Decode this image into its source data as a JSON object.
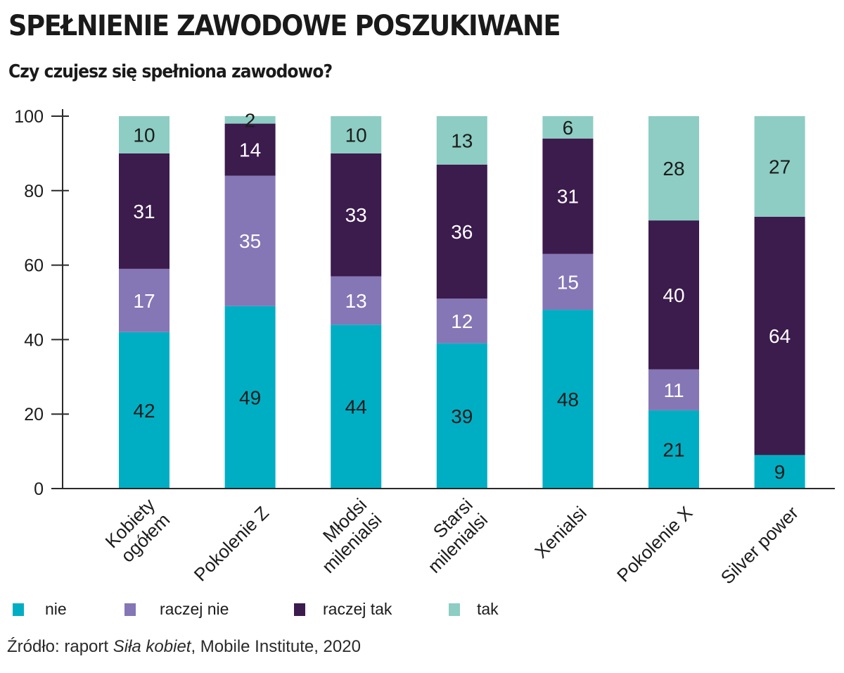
{
  "header": {
    "title": "SPEŁNIENIE ZAWODOWE POSZUKIWANE",
    "subtitle": "Czy czujesz się spełniona zawodowo?"
  },
  "colors": {
    "nie": "#00aec3",
    "raczej_nie": "#8576b6",
    "raczej_tak": "#3c1b4d",
    "tak": "#8dcdc3",
    "axis": "#2a2a2a",
    "text_dark": "#1c1c1c",
    "text_light": "#ffffff"
  },
  "legend": [
    {
      "key": "nie",
      "label": "nie"
    },
    {
      "key": "raczej_nie",
      "label": "raczej nie"
    },
    {
      "key": "raczej_tak",
      "label": "raczej tak"
    },
    {
      "key": "tak",
      "label": "tak"
    }
  ],
  "source": {
    "prefix": "Źródło: raport ",
    "italic": "Siła kobiet",
    "suffix": ", Mobile Institute, 2020"
  },
  "chart_data": {
    "type": "bar",
    "stacked": true,
    "title": "SPEŁNIENIE ZAWODOWE POSZUKIWANE",
    "subtitle": "Czy czujesz się spełniona zawodowo?",
    "xlabel": "",
    "ylabel": "",
    "ylim": [
      0,
      100
    ],
    "yticks": [
      0,
      20,
      40,
      60,
      80,
      100
    ],
    "grid": false,
    "legend_position": "bottom",
    "categories": [
      [
        "Kobiety",
        "ogółem"
      ],
      [
        "Pokolenie Z"
      ],
      [
        "Młodsi",
        "milenialsi"
      ],
      [
        "Starsi",
        "milenialsi"
      ],
      [
        "Xenialsi"
      ],
      [
        "Pokolenie X"
      ],
      [
        "Silver power"
      ]
    ],
    "series": [
      {
        "key": "nie",
        "name": "nie",
        "values": [
          42,
          49,
          44,
          39,
          48,
          21,
          9
        ],
        "label_color": "dark"
      },
      {
        "key": "raczej_nie",
        "name": "raczej nie",
        "values": [
          17,
          35,
          13,
          12,
          15,
          11,
          0
        ],
        "label_color": "light"
      },
      {
        "key": "raczej_tak",
        "name": "raczej tak",
        "values": [
          31,
          14,
          33,
          36,
          31,
          40,
          64
        ],
        "label_color": "light"
      },
      {
        "key": "tak",
        "name": "tak",
        "values": [
          10,
          2,
          10,
          13,
          6,
          28,
          27
        ],
        "label_color": "dark"
      }
    ]
  }
}
